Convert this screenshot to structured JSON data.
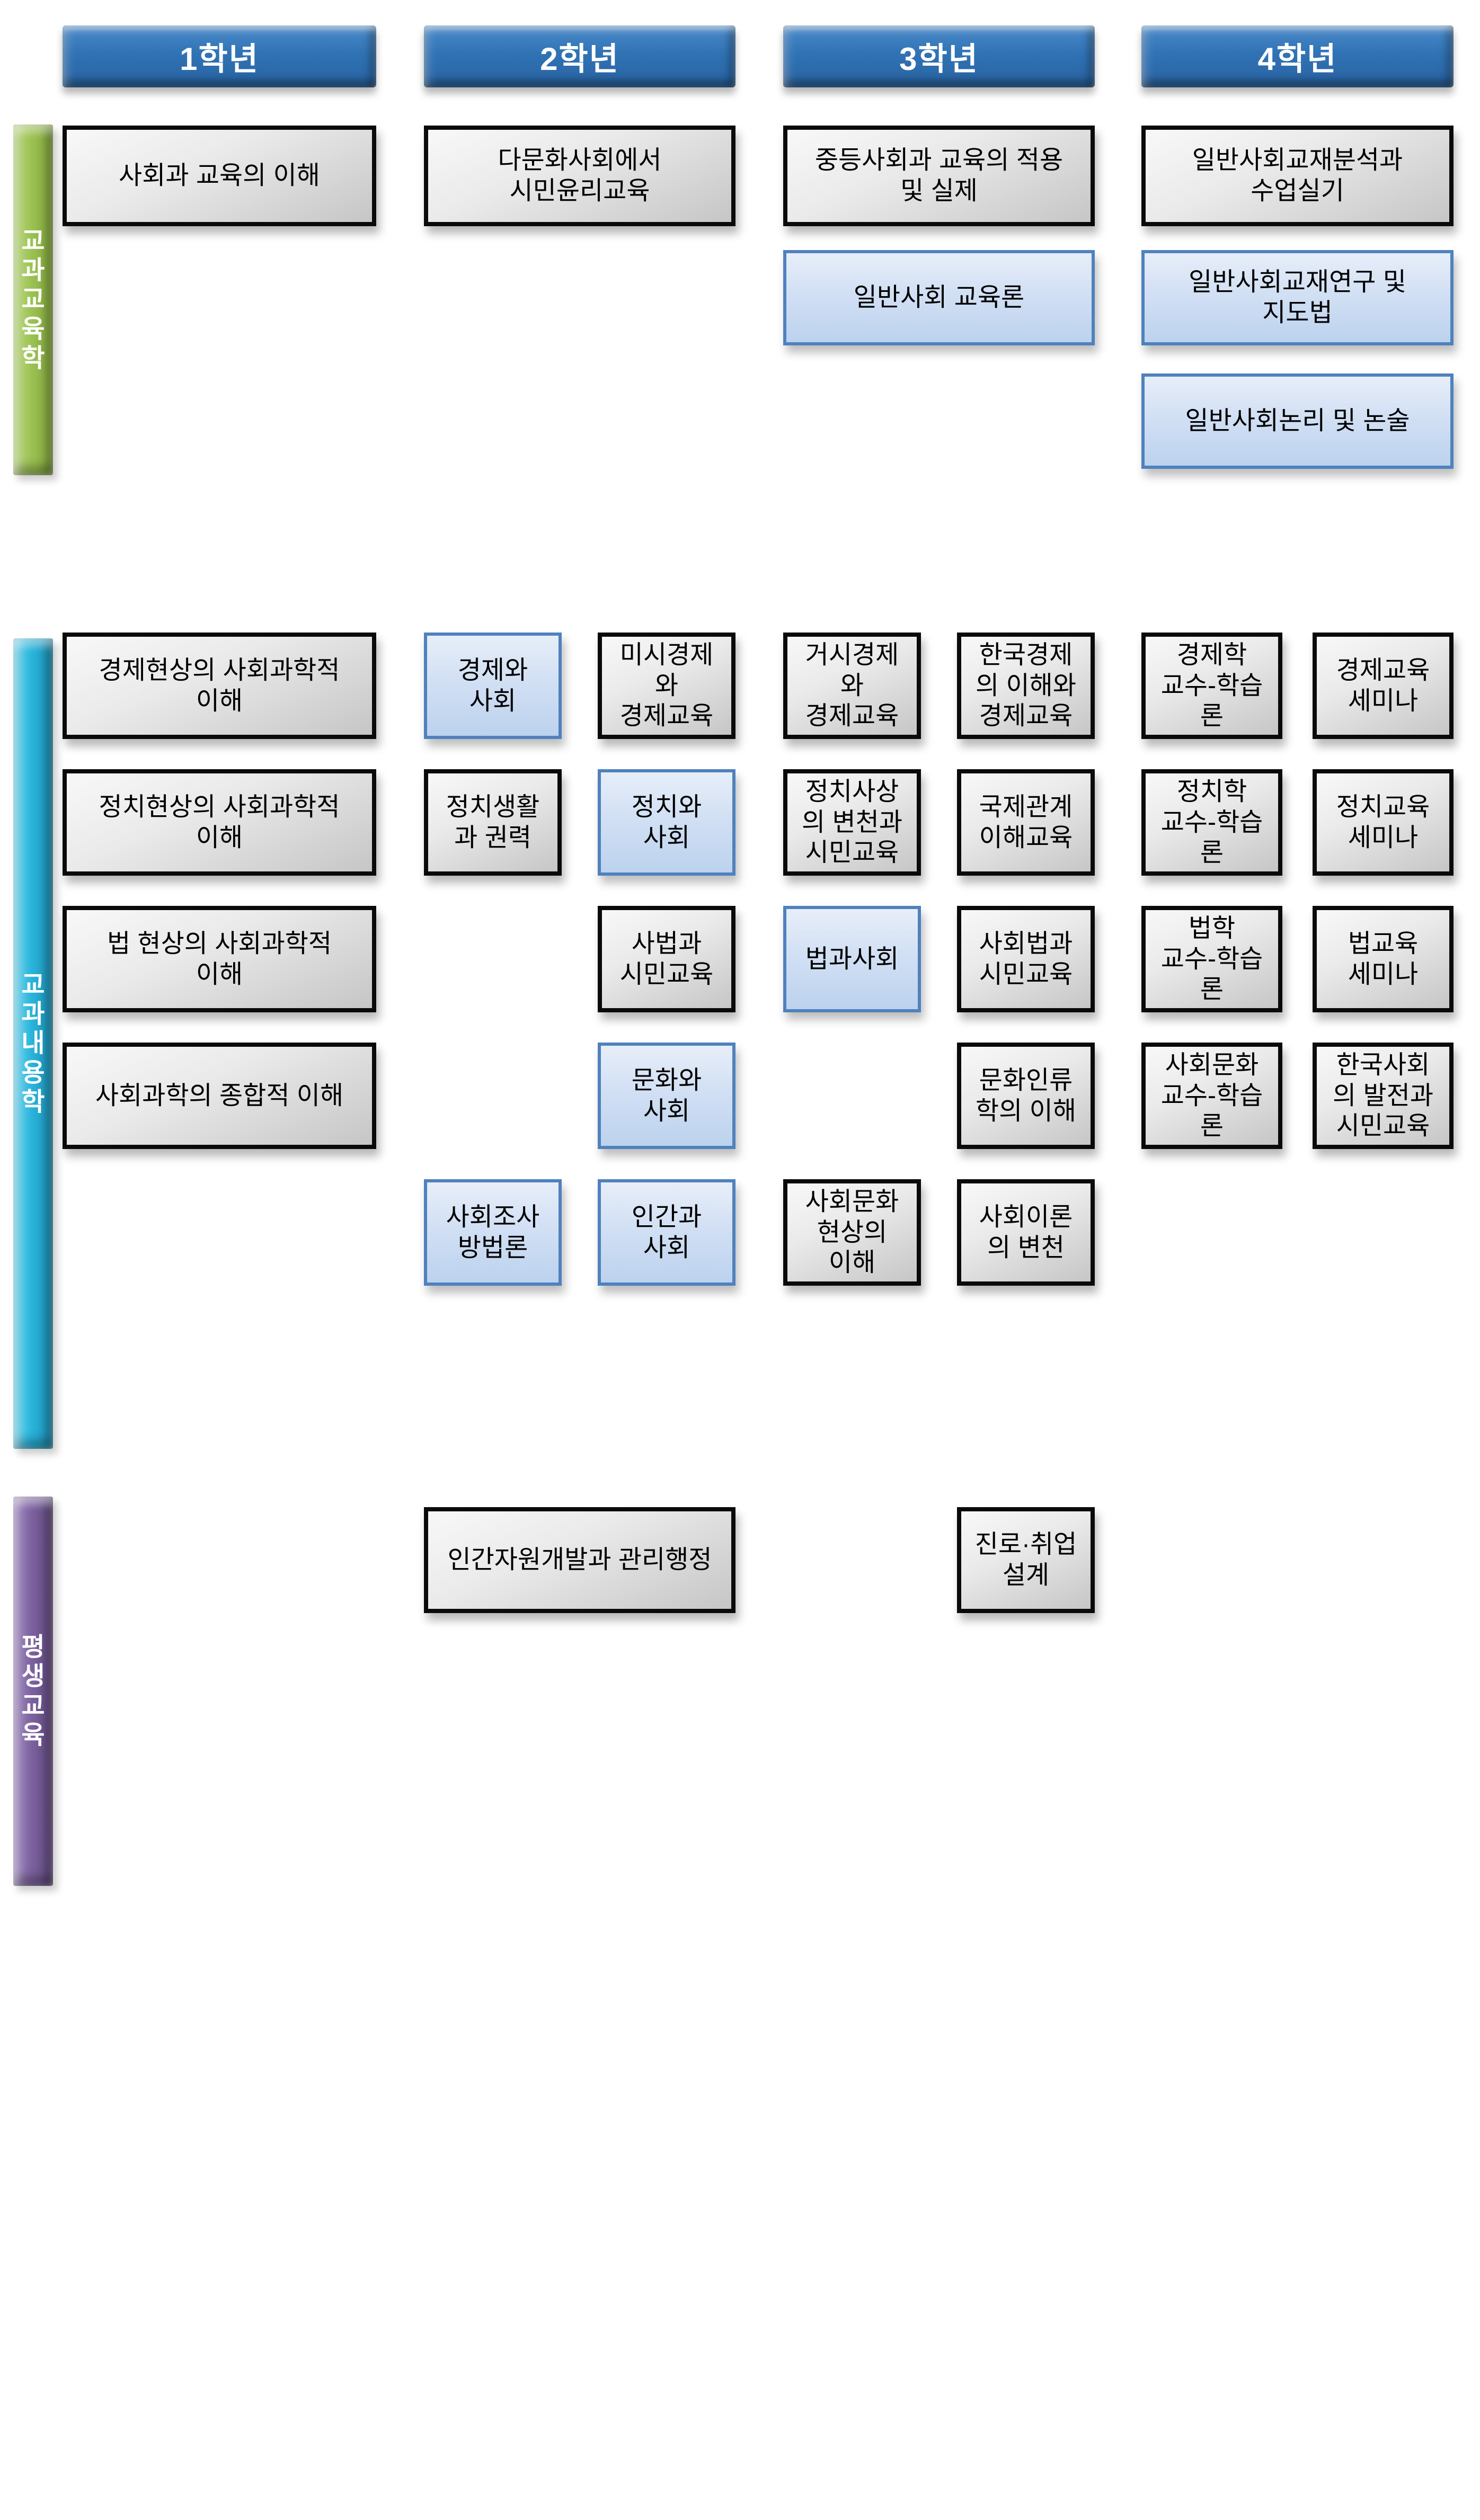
{
  "palette": {
    "header_blue": "#3073b5",
    "gray_box_border": "#0a0a0a",
    "gray_box_fill": "#dedede",
    "blue_box_border": "#4f81bd",
    "blue_box_fill": "#cfdff4",
    "bar_green": "#9cc254",
    "bar_teal": "#2ab5dc",
    "bar_purple": "#7d62a0",
    "text_dark": "#000000",
    "text_light": "#ffffff",
    "background": "#ffffff"
  },
  "headers": [
    {
      "label": "1학년",
      "col": "c1"
    },
    {
      "label": "2학년",
      "col": "c23"
    },
    {
      "label": "3학년",
      "col": "c45"
    },
    {
      "label": "4학년",
      "col": "c67"
    }
  ],
  "sidebars": [
    {
      "id": "subject-pedagogy",
      "label": "교과교육학",
      "vertical": "교\n과\n교\n육\n학",
      "color": "#9cc254",
      "bar": "green"
    },
    {
      "id": "subject-content",
      "label": "교과내용학",
      "vertical": "교\n과\n내\n용\n학",
      "color": "#2ab5dc",
      "bar": "teal"
    },
    {
      "id": "lifelong-education",
      "label": "평생교육",
      "vertical": "평\n생\n교\n육",
      "color": "#7d62a0",
      "bar": "purple"
    }
  ],
  "courses": [
    {
      "year": 1,
      "section": "교과교육학",
      "col": "c1",
      "row": "s1r1",
      "variant": "gray",
      "label": "사회과 교육의 이해"
    },
    {
      "year": 2,
      "section": "교과교육학",
      "col": "c23",
      "row": "s1r1",
      "variant": "gray",
      "label": "다문화사회에서\n시민윤리교육"
    },
    {
      "year": 3,
      "section": "교과교육학",
      "col": "c45",
      "row": "s1r1",
      "variant": "gray",
      "label": "중등사회과 교육의 적용\n및 실제"
    },
    {
      "year": 4,
      "section": "교과교육학",
      "col": "c67",
      "row": "s1r1",
      "variant": "gray",
      "label": "일반사회교재분석과\n수업실기"
    },
    {
      "year": 3,
      "section": "교과교육학",
      "col": "c45",
      "row": "s1r2",
      "variant": "blue",
      "label": "일반사회 교육론"
    },
    {
      "year": 4,
      "section": "교과교육학",
      "col": "c67",
      "row": "s1r2",
      "variant": "blue",
      "label": "일반사회교재연구 및\n지도법"
    },
    {
      "year": 4,
      "section": "교과교육학",
      "col": "c67",
      "row": "s1r3",
      "variant": "blue",
      "label": "일반사회논리 및 논술"
    },
    {
      "year": 1,
      "section": "교과내용학",
      "col": "c1",
      "row": "s2r1",
      "variant": "gray",
      "label": "경제현상의 사회과학적\n이해"
    },
    {
      "year": 2,
      "section": "교과내용학",
      "col": "c2",
      "row": "s2r1",
      "variant": "blue",
      "label": "경제와\n사회"
    },
    {
      "year": 2,
      "section": "교과내용학",
      "col": "c3",
      "row": "s2r1",
      "variant": "gray",
      "label": "미시경제\n와\n경제교육"
    },
    {
      "year": 3,
      "section": "교과내용학",
      "col": "c4",
      "row": "s2r1",
      "variant": "gray",
      "label": "거시경제\n와\n경제교육"
    },
    {
      "year": 3,
      "section": "교과내용학",
      "col": "c5",
      "row": "s2r1",
      "variant": "gray",
      "label": "한국경제\n의 이해와\n경제교육"
    },
    {
      "year": 4,
      "section": "교과내용학",
      "col": "c6",
      "row": "s2r1",
      "variant": "gray",
      "label": "경제학\n교수-학습\n론"
    },
    {
      "year": 4,
      "section": "교과내용학",
      "col": "c7",
      "row": "s2r1",
      "variant": "gray",
      "label": "경제교육\n세미나"
    },
    {
      "year": 1,
      "section": "교과내용학",
      "col": "c1",
      "row": "s2r2",
      "variant": "gray",
      "label": "정치현상의 사회과학적\n이해"
    },
    {
      "year": 2,
      "section": "교과내용학",
      "col": "c2",
      "row": "s2r2",
      "variant": "gray",
      "label": "정치생활\n과 권력"
    },
    {
      "year": 2,
      "section": "교과내용학",
      "col": "c3",
      "row": "s2r2",
      "variant": "blue",
      "label": "정치와\n사회"
    },
    {
      "year": 3,
      "section": "교과내용학",
      "col": "c4",
      "row": "s2r2",
      "variant": "gray",
      "label": "정치사상\n의 변천과\n시민교육"
    },
    {
      "year": 3,
      "section": "교과내용학",
      "col": "c5",
      "row": "s2r2",
      "variant": "gray",
      "label": "국제관계\n이해교육"
    },
    {
      "year": 4,
      "section": "교과내용학",
      "col": "c6",
      "row": "s2r2",
      "variant": "gray",
      "label": "정치학\n교수-학습\n론"
    },
    {
      "year": 4,
      "section": "교과내용학",
      "col": "c7",
      "row": "s2r2",
      "variant": "gray",
      "label": "정치교육\n세미나"
    },
    {
      "year": 1,
      "section": "교과내용학",
      "col": "c1",
      "row": "s2r3",
      "variant": "gray",
      "label": "법 현상의 사회과학적\n이해"
    },
    {
      "year": 2,
      "section": "교과내용학",
      "col": "c3",
      "row": "s2r3",
      "variant": "gray",
      "label": "사법과\n시민교육"
    },
    {
      "year": 3,
      "section": "교과내용학",
      "col": "c4",
      "row": "s2r3",
      "variant": "blue",
      "label": "법과사회"
    },
    {
      "year": 3,
      "section": "교과내용학",
      "col": "c5",
      "row": "s2r3",
      "variant": "gray",
      "label": "사회법과\n시민교육"
    },
    {
      "year": 4,
      "section": "교과내용학",
      "col": "c6",
      "row": "s2r3",
      "variant": "gray",
      "label": "법학\n교수-학습\n론"
    },
    {
      "year": 4,
      "section": "교과내용학",
      "col": "c7",
      "row": "s2r3",
      "variant": "gray",
      "label": "법교육\n세미나"
    },
    {
      "year": 1,
      "section": "교과내용학",
      "col": "c1",
      "row": "s2r4",
      "variant": "gray",
      "label": "사회과학의 종합적 이해"
    },
    {
      "year": 2,
      "section": "교과내용학",
      "col": "c3",
      "row": "s2r4",
      "variant": "blue",
      "label": "문화와\n사회"
    },
    {
      "year": 3,
      "section": "교과내용학",
      "col": "c5",
      "row": "s2r4",
      "variant": "gray",
      "label": "문화인류\n학의 이해"
    },
    {
      "year": 4,
      "section": "교과내용학",
      "col": "c6",
      "row": "s2r4",
      "variant": "gray",
      "label": "사회문화\n교수-학습\n론"
    },
    {
      "year": 4,
      "section": "교과내용학",
      "col": "c7",
      "row": "s2r4",
      "variant": "gray",
      "label": "한국사회\n의 발전과\n시민교육"
    },
    {
      "year": 2,
      "section": "교과내용학",
      "col": "c2",
      "row": "s2r5",
      "variant": "blue",
      "label": "사회조사\n방법론"
    },
    {
      "year": 2,
      "section": "교과내용학",
      "col": "c3",
      "row": "s2r5",
      "variant": "blue",
      "label": "인간과\n사회"
    },
    {
      "year": 3,
      "section": "교과내용학",
      "col": "c4",
      "row": "s2r5",
      "variant": "gray",
      "label": "사회문화\n현상의\n이해"
    },
    {
      "year": 3,
      "section": "교과내용학",
      "col": "c5",
      "row": "s2r5",
      "variant": "gray",
      "label": "사회이론\n의 변천"
    },
    {
      "year": 2,
      "section": "평생교육",
      "col": "c23",
      "row": "s3r1",
      "variant": "gray",
      "label": "인간자원개발과 관리행정"
    },
    {
      "year": 3,
      "section": "평생교육",
      "col": "c5",
      "row": "s3r1",
      "variant": "gray",
      "label": "진로·취업\n설계"
    }
  ]
}
